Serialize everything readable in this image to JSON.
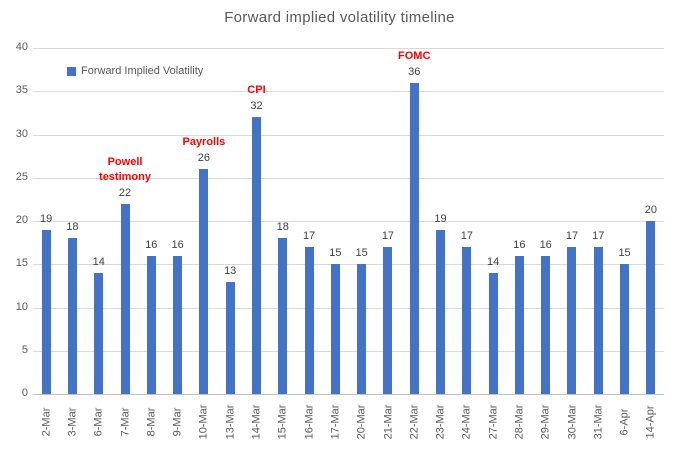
{
  "title": "Forward implied volatility timeline",
  "legend": {
    "label": "Forward Implied Volatility",
    "swatch_color": "#4472C4"
  },
  "colors": {
    "bar": "#4472C4",
    "annotation": "#FF0000",
    "value_label": "#404040",
    "axis_text": "#595959",
    "gridline": "#D9D9D9"
  },
  "chart_data": {
    "type": "bar",
    "title": "Forward implied volatility timeline",
    "series_name": "Forward Implied Volatility",
    "categories": [
      "2-Mar",
      "3-Mar",
      "6-Mar",
      "7-Mar",
      "8-Mar",
      "9-Mar",
      "10-Mar",
      "13-Mar",
      "14-Mar",
      "15-Mar",
      "16-Mar",
      "17-Mar",
      "20-Mar",
      "21-Mar",
      "22-Mar",
      "23-Mar",
      "24-Mar",
      "27-Mar",
      "28-Mar",
      "29-Mar",
      "30-Mar",
      "31-Mar",
      "6-Apr",
      "14-Apr"
    ],
    "values": [
      19,
      18,
      14,
      22,
      16,
      16,
      26,
      13,
      32,
      18,
      17,
      15,
      15,
      17,
      36,
      19,
      17,
      14,
      16,
      16,
      17,
      17,
      15,
      20
    ],
    "xlabel": "",
    "ylabel": "",
    "ylim": [
      0,
      40
    ],
    "yticks": [
      0,
      5,
      10,
      15,
      20,
      25,
      30,
      35,
      40
    ],
    "grid": true,
    "legend_position": "top-left",
    "data_labels": true,
    "x_tick_rotation": -90,
    "annotations": [
      {
        "lines": [
          "Powell",
          "testimony"
        ],
        "category": "7-Mar"
      },
      {
        "lines": [
          "Payrolls"
        ],
        "category": "10-Mar"
      },
      {
        "lines": [
          "CPI"
        ],
        "category": "14-Mar"
      },
      {
        "lines": [
          "FOMC"
        ],
        "category": "22-Mar"
      }
    ]
  }
}
